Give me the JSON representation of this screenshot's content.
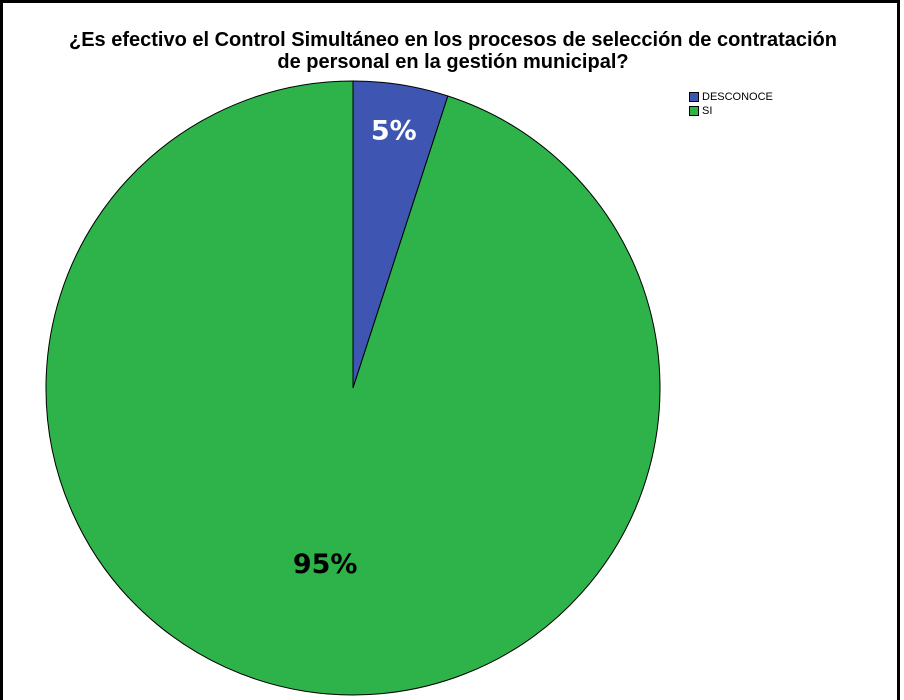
{
  "chart_data": {
    "type": "pie",
    "title_lines": [
      "¿Es efectivo el Control Simultáneo en los procesos de selección de contratación",
      "de personal en la gestión municipal?"
    ],
    "categories": [
      "DESCONOCE",
      "SI"
    ],
    "values": [
      5,
      95
    ],
    "labels": [
      "5%",
      "95%"
    ],
    "colors": [
      "#3f55b2",
      "#2db34a"
    ],
    "label_colors": [
      "#ffffff",
      "#000000"
    ],
    "legend_position": "top-right"
  }
}
